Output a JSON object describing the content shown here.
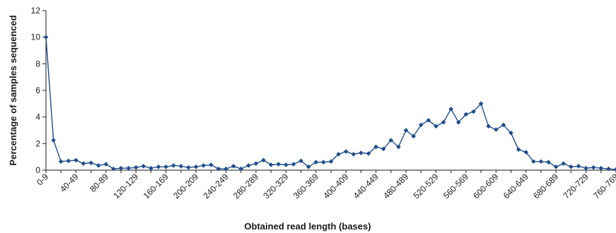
{
  "chart_data": {
    "type": "line",
    "title": "",
    "xlabel": "Obtained read length (bases)",
    "ylabel": "Percentage of samples sequenced",
    "ylim": [
      0,
      12
    ],
    "yticks": [
      0,
      2,
      4,
      6,
      8,
      10,
      12
    ],
    "grid": false,
    "legend": "none",
    "colors": {
      "series": "#1f4e8c",
      "axis": "#1a1a1a"
    },
    "categories": [
      "0-9",
      "10-19",
      "20-29",
      "30-39",
      "40-49",
      "50-59",
      "60-69",
      "70-79",
      "80-89",
      "90-99",
      "100-109",
      "110-119",
      "120-129",
      "130-139",
      "140-149",
      "150-159",
      "160-169",
      "170-179",
      "180-189",
      "190-199",
      "200-209",
      "210-219",
      "220-229",
      "230-239",
      "240-249",
      "250-259",
      "260-269",
      "270-279",
      "280-289",
      "290-299",
      "300-309",
      "310-319",
      "320-329",
      "330-339",
      "340-349",
      "350-359",
      "360-369",
      "370-379",
      "380-389",
      "390-399",
      "400-409",
      "410-419",
      "420-429",
      "430-439",
      "440-449",
      "450-459",
      "460-469",
      "470-479",
      "480-489",
      "490-499",
      "500-509",
      "510-519",
      "520-529",
      "530-539",
      "540-549",
      "550-559",
      "560-569",
      "570-579",
      "580-589",
      "590-599",
      "600-609",
      "610-619",
      "620-629",
      "630-639",
      "640-649",
      "650-659",
      "660-669",
      "670-679",
      "680-689",
      "690-699",
      "700-709",
      "710-719",
      "720-729",
      "730-739",
      "740-749",
      "750-759",
      "760-769"
    ],
    "tick_labels": [
      "0-9",
      "40-49",
      "80-89",
      "120-129",
      "160-169",
      "200-209",
      "240-249",
      "280-289",
      "320-329",
      "360-369",
      "400-409",
      "440-449",
      "480-489",
      "520-529",
      "560-569",
      "600-609",
      "640-649",
      "680-689",
      "720-729",
      "760-769"
    ],
    "series": [
      {
        "values": [
          10.0,
          2.25,
          0.65,
          0.7,
          0.75,
          0.5,
          0.55,
          0.35,
          0.45,
          0.1,
          0.15,
          0.15,
          0.2,
          0.3,
          0.15,
          0.25,
          0.25,
          0.35,
          0.3,
          0.2,
          0.25,
          0.35,
          0.4,
          0.1,
          0.1,
          0.3,
          0.1,
          0.35,
          0.5,
          0.75,
          0.4,
          0.45,
          0.4,
          0.45,
          0.7,
          0.25,
          0.6,
          0.6,
          0.65,
          1.2,
          1.4,
          1.2,
          1.3,
          1.25,
          1.75,
          1.6,
          2.25,
          1.75,
          3.0,
          2.55,
          3.4,
          3.75,
          3.3,
          3.6,
          4.6,
          3.6,
          4.2,
          4.4,
          5.0,
          3.3,
          3.05,
          3.4,
          2.8,
          1.55,
          1.35,
          0.65,
          0.65,
          0.6,
          0.25,
          0.5,
          0.25,
          0.3,
          0.15,
          0.2,
          0.15,
          0.1,
          0.05
        ]
      }
    ]
  }
}
